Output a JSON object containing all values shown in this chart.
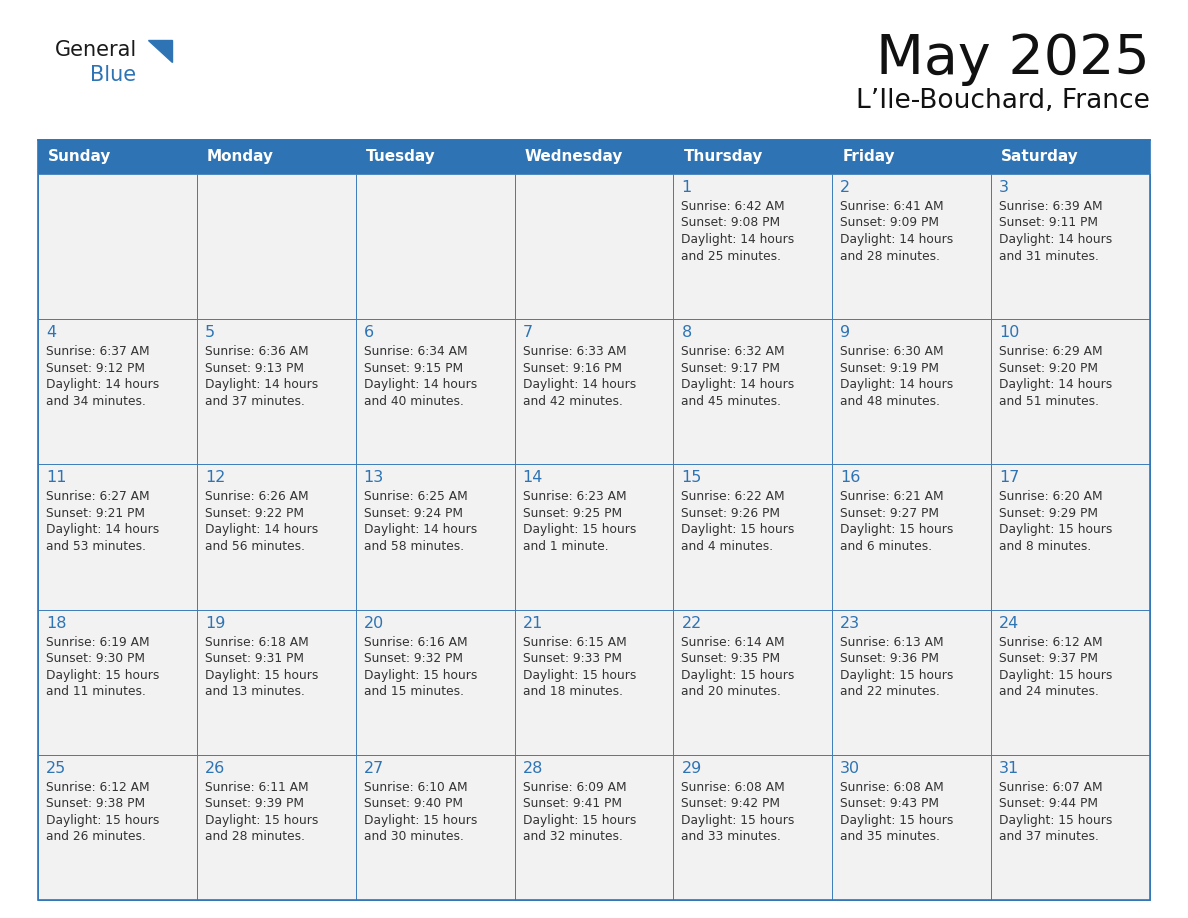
{
  "title": "May 2025",
  "subtitle": "L’Ile-Bouchard, France",
  "header_color": "#2e74b5",
  "header_text_color": "#ffffff",
  "days_of_week": [
    "Sunday",
    "Monday",
    "Tuesday",
    "Wednesday",
    "Thursday",
    "Friday",
    "Saturday"
  ],
  "cell_border_color": "#2e74b5",
  "cell_bg_color": "#f2f2f2",
  "bg_color": "#ffffff",
  "day_num_color": "#2e74b5",
  "text_color": "#333333",
  "logo_general_color": "#1a1a1a",
  "logo_blue_color": "#2e74b5",
  "weeks": [
    [
      {
        "day": "",
        "sunrise": "",
        "sunset": "",
        "daylight": ""
      },
      {
        "day": "",
        "sunrise": "",
        "sunset": "",
        "daylight": ""
      },
      {
        "day": "",
        "sunrise": "",
        "sunset": "",
        "daylight": ""
      },
      {
        "day": "",
        "sunrise": "",
        "sunset": "",
        "daylight": ""
      },
      {
        "day": "1",
        "sunrise": "6:42 AM",
        "sunset": "9:08 PM",
        "daylight_line1": "Daylight: 14 hours",
        "daylight_line2": "and 25 minutes."
      },
      {
        "day": "2",
        "sunrise": "6:41 AM",
        "sunset": "9:09 PM",
        "daylight_line1": "Daylight: 14 hours",
        "daylight_line2": "and 28 minutes."
      },
      {
        "day": "3",
        "sunrise": "6:39 AM",
        "sunset": "9:11 PM",
        "daylight_line1": "Daylight: 14 hours",
        "daylight_line2": "and 31 minutes."
      }
    ],
    [
      {
        "day": "4",
        "sunrise": "6:37 AM",
        "sunset": "9:12 PM",
        "daylight_line1": "Daylight: 14 hours",
        "daylight_line2": "and 34 minutes."
      },
      {
        "day": "5",
        "sunrise": "6:36 AM",
        "sunset": "9:13 PM",
        "daylight_line1": "Daylight: 14 hours",
        "daylight_line2": "and 37 minutes."
      },
      {
        "day": "6",
        "sunrise": "6:34 AM",
        "sunset": "9:15 PM",
        "daylight_line1": "Daylight: 14 hours",
        "daylight_line2": "and 40 minutes."
      },
      {
        "day": "7",
        "sunrise": "6:33 AM",
        "sunset": "9:16 PM",
        "daylight_line1": "Daylight: 14 hours",
        "daylight_line2": "and 42 minutes."
      },
      {
        "day": "8",
        "sunrise": "6:32 AM",
        "sunset": "9:17 PM",
        "daylight_line1": "Daylight: 14 hours",
        "daylight_line2": "and 45 minutes."
      },
      {
        "day": "9",
        "sunrise": "6:30 AM",
        "sunset": "9:19 PM",
        "daylight_line1": "Daylight: 14 hours",
        "daylight_line2": "and 48 minutes."
      },
      {
        "day": "10",
        "sunrise": "6:29 AM",
        "sunset": "9:20 PM",
        "daylight_line1": "Daylight: 14 hours",
        "daylight_line2": "and 51 minutes."
      }
    ],
    [
      {
        "day": "11",
        "sunrise": "6:27 AM",
        "sunset": "9:21 PM",
        "daylight_line1": "Daylight: 14 hours",
        "daylight_line2": "and 53 minutes."
      },
      {
        "day": "12",
        "sunrise": "6:26 AM",
        "sunset": "9:22 PM",
        "daylight_line1": "Daylight: 14 hours",
        "daylight_line2": "and 56 minutes."
      },
      {
        "day": "13",
        "sunrise": "6:25 AM",
        "sunset": "9:24 PM",
        "daylight_line1": "Daylight: 14 hours",
        "daylight_line2": "and 58 minutes."
      },
      {
        "day": "14",
        "sunrise": "6:23 AM",
        "sunset": "9:25 PM",
        "daylight_line1": "Daylight: 15 hours",
        "daylight_line2": "and 1 minute."
      },
      {
        "day": "15",
        "sunrise": "6:22 AM",
        "sunset": "9:26 PM",
        "daylight_line1": "Daylight: 15 hours",
        "daylight_line2": "and 4 minutes."
      },
      {
        "day": "16",
        "sunrise": "6:21 AM",
        "sunset": "9:27 PM",
        "daylight_line1": "Daylight: 15 hours",
        "daylight_line2": "and 6 minutes."
      },
      {
        "day": "17",
        "sunrise": "6:20 AM",
        "sunset": "9:29 PM",
        "daylight_line1": "Daylight: 15 hours",
        "daylight_line2": "and 8 minutes."
      }
    ],
    [
      {
        "day": "18",
        "sunrise": "6:19 AM",
        "sunset": "9:30 PM",
        "daylight_line1": "Daylight: 15 hours",
        "daylight_line2": "and 11 minutes."
      },
      {
        "day": "19",
        "sunrise": "6:18 AM",
        "sunset": "9:31 PM",
        "daylight_line1": "Daylight: 15 hours",
        "daylight_line2": "and 13 minutes."
      },
      {
        "day": "20",
        "sunrise": "6:16 AM",
        "sunset": "9:32 PM",
        "daylight_line1": "Daylight: 15 hours",
        "daylight_line2": "and 15 minutes."
      },
      {
        "day": "21",
        "sunrise": "6:15 AM",
        "sunset": "9:33 PM",
        "daylight_line1": "Daylight: 15 hours",
        "daylight_line2": "and 18 minutes."
      },
      {
        "day": "22",
        "sunrise": "6:14 AM",
        "sunset": "9:35 PM",
        "daylight_line1": "Daylight: 15 hours",
        "daylight_line2": "and 20 minutes."
      },
      {
        "day": "23",
        "sunrise": "6:13 AM",
        "sunset": "9:36 PM",
        "daylight_line1": "Daylight: 15 hours",
        "daylight_line2": "and 22 minutes."
      },
      {
        "day": "24",
        "sunrise": "6:12 AM",
        "sunset": "9:37 PM",
        "daylight_line1": "Daylight: 15 hours",
        "daylight_line2": "and 24 minutes."
      }
    ],
    [
      {
        "day": "25",
        "sunrise": "6:12 AM",
        "sunset": "9:38 PM",
        "daylight_line1": "Daylight: 15 hours",
        "daylight_line2": "and 26 minutes."
      },
      {
        "day": "26",
        "sunrise": "6:11 AM",
        "sunset": "9:39 PM",
        "daylight_line1": "Daylight: 15 hours",
        "daylight_line2": "and 28 minutes."
      },
      {
        "day": "27",
        "sunrise": "6:10 AM",
        "sunset": "9:40 PM",
        "daylight_line1": "Daylight: 15 hours",
        "daylight_line2": "and 30 minutes."
      },
      {
        "day": "28",
        "sunrise": "6:09 AM",
        "sunset": "9:41 PM",
        "daylight_line1": "Daylight: 15 hours",
        "daylight_line2": "and 32 minutes."
      },
      {
        "day": "29",
        "sunrise": "6:08 AM",
        "sunset": "9:42 PM",
        "daylight_line1": "Daylight: 15 hours",
        "daylight_line2": "and 33 minutes."
      },
      {
        "day": "30",
        "sunrise": "6:08 AM",
        "sunset": "9:43 PM",
        "daylight_line1": "Daylight: 15 hours",
        "daylight_line2": "and 35 minutes."
      },
      {
        "day": "31",
        "sunrise": "6:07 AM",
        "sunset": "9:44 PM",
        "daylight_line1": "Daylight: 15 hours",
        "daylight_line2": "and 37 minutes."
      }
    ]
  ]
}
